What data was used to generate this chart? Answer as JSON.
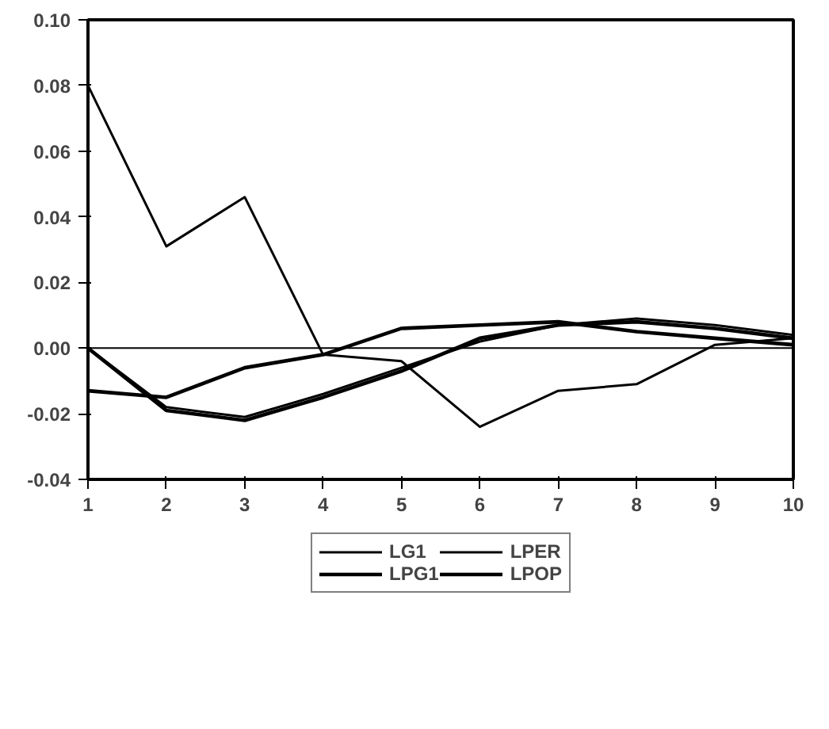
{
  "chart_data": {
    "type": "line",
    "x": [
      1,
      2,
      3,
      4,
      5,
      6,
      7,
      8,
      9,
      10
    ],
    "series": [
      {
        "name": "LG1",
        "color": "#000000",
        "values": [
          0.08,
          0.031,
          0.046,
          -0.002,
          -0.004,
          -0.024,
          -0.013,
          -0.011,
          0.001,
          0.003
        ]
      },
      {
        "name": "LPG1",
        "color": "#000000",
        "values": [
          -0.013,
          -0.015,
          -0.006,
          -0.002,
          0.006,
          0.007,
          0.008,
          0.005,
          0.003,
          0.001
        ]
      },
      {
        "name": "LPER",
        "color": "#000000",
        "values": [
          0,
          -0.018,
          -0.021,
          -0.014,
          -0.006,
          0.002,
          0.007,
          0.009,
          0.007,
          0.004
        ]
      },
      {
        "name": "LPOP",
        "color": "#000000",
        "values": [
          0,
          -0.019,
          -0.022,
          -0.015,
          -0.007,
          0.003,
          0.007,
          0.008,
          0.006,
          0.003
        ]
      }
    ],
    "xlim": [
      1,
      10
    ],
    "xticks": [
      1,
      2,
      3,
      4,
      5,
      6,
      7,
      8,
      9,
      10
    ],
    "ylim": [
      -0.04,
      0.1
    ],
    "yticks": [
      {
        "value": -0.04,
        "label": "-0.04"
      },
      {
        "value": -0.02,
        "label": "-0.02"
      },
      {
        "value": 0,
        "label": "0.00"
      },
      {
        "value": 0.02,
        "label": "0.02"
      },
      {
        "value": 0.04,
        "label": "0.04"
      },
      {
        "value": 0.06,
        "label": "0.06"
      },
      {
        "value": 0.08,
        "label": "0.08"
      },
      {
        "value": 0.1,
        "label": "0.10"
      }
    ],
    "ref_lines": [
      {
        "axis": "y",
        "value": 0,
        "color": "#000000"
      }
    ],
    "grid": false,
    "legend": "bottom",
    "line_style": "solid",
    "marker": "none"
  }
}
